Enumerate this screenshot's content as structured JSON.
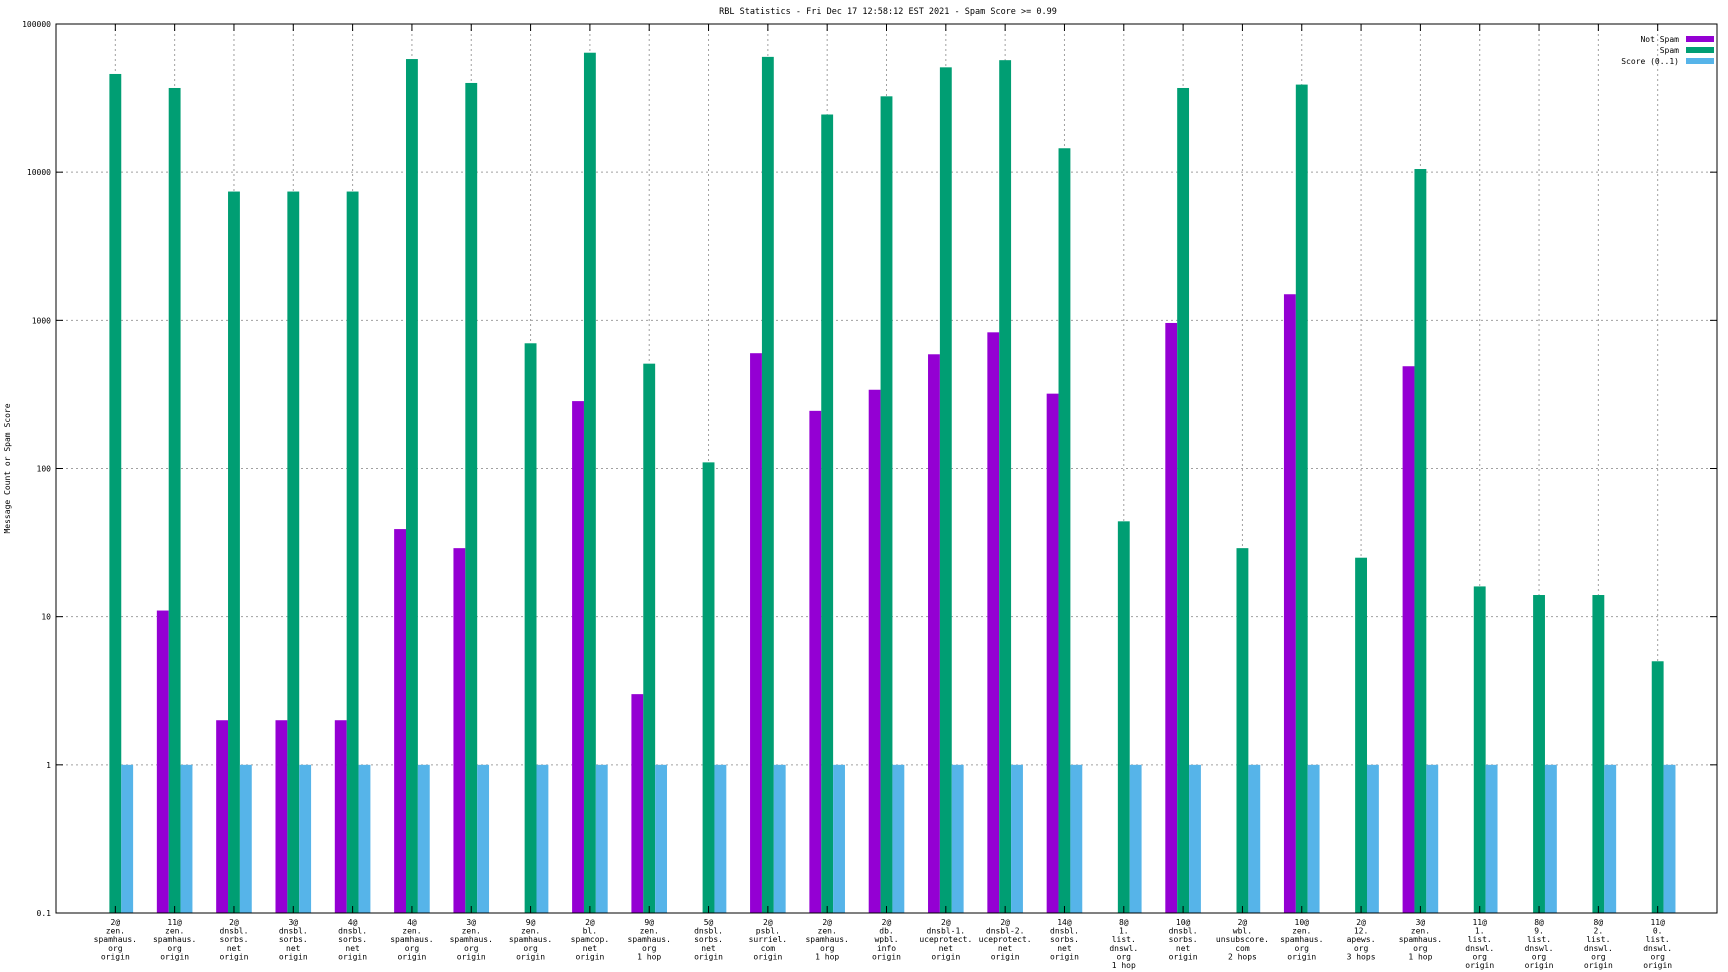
{
  "chart_data": {
    "type": "bar",
    "title": "RBL Statistics - Fri Dec 17 12:58:12 EST 2021 - Spam Score >= 0.99",
    "ylabel": "Message Count or Spam Score",
    "xlabel": "",
    "yscale": "log",
    "ylim": [
      0.1,
      100000
    ],
    "yticks": [
      "0.1",
      "1",
      "10",
      "100",
      "1000",
      "10000",
      "100000"
    ],
    "grid": true,
    "legend_position": "top-right",
    "categories": [
      [
        "2@",
        "zen.",
        "spamhaus.",
        "org",
        "origin"
      ],
      [
        "11@",
        "zen.",
        "spamhaus.",
        "org",
        "origin"
      ],
      [
        "2@",
        "dnsbl.",
        "sorbs.",
        "net",
        "origin"
      ],
      [
        "3@",
        "dnsbl.",
        "sorbs.",
        "net",
        "origin"
      ],
      [
        "4@",
        "dnsbl.",
        "sorbs.",
        "net",
        "origin"
      ],
      [
        "4@",
        "zen.",
        "spamhaus.",
        "org",
        "origin"
      ],
      [
        "3@",
        "zen.",
        "spamhaus.",
        "org",
        "origin"
      ],
      [
        "9@",
        "zen.",
        "spamhaus.",
        "org",
        "origin"
      ],
      [
        "2@",
        "bl.",
        "spamcop.",
        "net",
        "origin"
      ],
      [
        "9@",
        "zen.",
        "spamhaus.",
        "org",
        "1 hop"
      ],
      [
        "5@",
        "dnsbl.",
        "sorbs.",
        "net",
        "origin"
      ],
      [
        "2@",
        "psbl.",
        "surriel.",
        "com",
        "origin"
      ],
      [
        "2@",
        "zen.",
        "spamhaus.",
        "org",
        "1 hop"
      ],
      [
        "2@",
        "db.",
        "wpbl.",
        "info",
        "origin"
      ],
      [
        "2@",
        "dnsbl-1.",
        "uceprotect.",
        "net",
        "origin"
      ],
      [
        "2@",
        "dnsbl-2.",
        "uceprotect.",
        "net",
        "origin"
      ],
      [
        "14@",
        "dnsbl.",
        "sorbs.",
        "net",
        "origin"
      ],
      [
        "8@",
        "1.",
        "list.",
        "dnswl.",
        "org",
        "1 hop"
      ],
      [
        "10@",
        "dnsbl.",
        "sorbs.",
        "net",
        "origin"
      ],
      [
        "2@",
        "wbl.",
        "unsubscore.",
        "com",
        "2 hops"
      ],
      [
        "10@",
        "zen.",
        "spamhaus.",
        "org",
        "origin"
      ],
      [
        "2@",
        "12.",
        "apews.",
        "org",
        "3 hops"
      ],
      [
        "3@",
        "zen.",
        "spamhaus.",
        "org",
        "1 hop"
      ],
      [
        "11@",
        "1.",
        "list.",
        "dnswl.",
        "org",
        "origin"
      ],
      [
        "8@",
        "9.",
        "list.",
        "dnswl.",
        "org",
        "origin"
      ],
      [
        "8@",
        "2.",
        "list.",
        "dnswl.",
        "org",
        "origin"
      ],
      [
        "11@",
        "0.",
        "list.",
        "dnswl.",
        "org",
        "origin"
      ]
    ],
    "series": [
      {
        "name": "Not Spam",
        "color": "#9400d3",
        "values": [
          null,
          11,
          2,
          2,
          2,
          39,
          29,
          null,
          285,
          3,
          null,
          600,
          245,
          340,
          590,
          830,
          320,
          null,
          960,
          null,
          1500,
          null,
          490,
          null,
          null,
          null,
          null
        ]
      },
      {
        "name": "Spam",
        "color": "#009e73",
        "values": [
          46000,
          37000,
          7400,
          7400,
          7400,
          58000,
          40000,
          700,
          64000,
          510,
          110,
          60000,
          24500,
          32500,
          51000,
          57000,
          14500,
          44,
          37000,
          29,
          39000,
          25,
          10500,
          16,
          14,
          14,
          5
        ]
      },
      {
        "name": "Score (0..1)",
        "color": "#56b4e9",
        "values": [
          1,
          1,
          1,
          1,
          1,
          1,
          1,
          1,
          1,
          1,
          1,
          1,
          1,
          1,
          1,
          1,
          1,
          1,
          1,
          1,
          1,
          1,
          1,
          1,
          1,
          1,
          1
        ]
      }
    ]
  }
}
